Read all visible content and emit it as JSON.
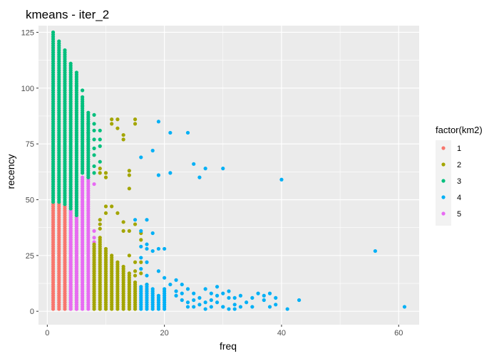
{
  "chart_data": {
    "type": "scatter",
    "title": "kmeans - iter_2",
    "xlabel": "freq",
    "ylabel": "recency",
    "xlim": [
      -1.5,
      63.5
    ],
    "ylim": [
      -6,
      128
    ],
    "x_ticks": [
      0,
      20,
      40,
      60
    ],
    "y_ticks": [
      0,
      25,
      50,
      75,
      100,
      125
    ],
    "grid": true,
    "legend": {
      "title": "factor(km2)",
      "position": "right",
      "entries": [
        "1",
        "2",
        "3",
        "4",
        "5"
      ]
    },
    "colors": {
      "1": "#F8766D",
      "2": "#A3A500",
      "3": "#00BF7D",
      "4": "#00B0F6",
      "5": "#E76BF3"
    },
    "series": [
      {
        "name": "1",
        "columns": [
          {
            "x": 1,
            "ymin": 1,
            "ymax": 48
          },
          {
            "x": 2,
            "ymin": 1,
            "ymax": 48
          },
          {
            "x": 3,
            "ymin": 1,
            "ymax": 47
          },
          {
            "x": 4,
            "ymin": 1,
            "ymax": 45
          },
          {
            "x": 5,
            "ymin": 1,
            "ymax": 42
          }
        ]
      },
      {
        "name": "2",
        "columns": [
          {
            "x": 8,
            "ymin": 1,
            "ymax": 30
          },
          {
            "x": 9,
            "ymin": 1,
            "ymax": 33
          },
          {
            "x": 10,
            "ymin": 1,
            "ymax": 28
          },
          {
            "x": 11,
            "ymin": 1,
            "ymax": 25
          },
          {
            "x": 12,
            "ymin": 1,
            "ymax": 22
          },
          {
            "x": 13,
            "ymin": 1,
            "ymax": 20
          },
          {
            "x": 14,
            "ymin": 1,
            "ymax": 17
          },
          {
            "x": 15,
            "ymin": 1,
            "ymax": 13
          }
        ],
        "points": [
          [
            9,
            41
          ],
          [
            9,
            39
          ],
          [
            9,
            37
          ],
          [
            9,
            62
          ],
          [
            9,
            64
          ],
          [
            10,
            60
          ],
          [
            10,
            62
          ],
          [
            10,
            44
          ],
          [
            10,
            47
          ],
          [
            11,
            84
          ],
          [
            11,
            86
          ],
          [
            12,
            86
          ],
          [
            12,
            82
          ],
          [
            13,
            79
          ],
          [
            13,
            77
          ],
          [
            14,
            63
          ],
          [
            14,
            61
          ],
          [
            14,
            55
          ],
          [
            15,
            84
          ],
          [
            15,
            86
          ],
          [
            11,
            47
          ],
          [
            12,
            44
          ],
          [
            13,
            40
          ],
          [
            13,
            36
          ],
          [
            14,
            36
          ],
          [
            15,
            39
          ],
          [
            16,
            35
          ],
          [
            16,
            32
          ],
          [
            14,
            25
          ],
          [
            15,
            22
          ],
          [
            16,
            22
          ],
          [
            16,
            17
          ],
          [
            17,
            9
          ],
          [
            17,
            12
          ],
          [
            15,
            18
          ],
          [
            15,
            16
          ]
        ]
      },
      {
        "name": "3",
        "columns": [
          {
            "x": 1,
            "ymin": 49,
            "ymax": 125
          },
          {
            "x": 2,
            "ymin": 49,
            "ymax": 121
          },
          {
            "x": 3,
            "ymin": 48,
            "ymax": 117
          },
          {
            "x": 4,
            "ymin": 46,
            "ymax": 111
          },
          {
            "x": 5,
            "ymin": 43,
            "ymax": 107
          },
          {
            "x": 6,
            "ymin": 62,
            "ymax": 96
          },
          {
            "x": 7,
            "ymin": 60,
            "ymax": 89
          }
        ],
        "points": [
          [
            5,
            101
          ],
          [
            6,
            99
          ],
          [
            6,
            92
          ],
          [
            7,
            84
          ],
          [
            7,
            80
          ],
          [
            7,
            77
          ],
          [
            8,
            88
          ],
          [
            8,
            84
          ],
          [
            8,
            81
          ],
          [
            8,
            77
          ],
          [
            8,
            73
          ],
          [
            8,
            70
          ],
          [
            9,
            81
          ],
          [
            9,
            77
          ],
          [
            9,
            74
          ],
          [
            9,
            67
          ],
          [
            8,
            65
          ],
          [
            8,
            62
          ]
        ]
      },
      {
        "name": "4",
        "columns": [
          {
            "x": 16,
            "ymin": 1,
            "ymax": 11
          },
          {
            "x": 17,
            "ymin": 1,
            "ymax": 12
          },
          {
            "x": 18,
            "ymin": 1,
            "ymax": 10
          },
          {
            "x": 19,
            "ymin": 1,
            "ymax": 7
          },
          {
            "x": 20,
            "ymin": 1,
            "ymax": 10
          }
        ],
        "points": [
          [
            19,
            85
          ],
          [
            21,
            80
          ],
          [
            24,
            80
          ],
          [
            18,
            72
          ],
          [
            16,
            69
          ],
          [
            25,
            66
          ],
          [
            27,
            64
          ],
          [
            30,
            64
          ],
          [
            21,
            62
          ],
          [
            19,
            61
          ],
          [
            26,
            60
          ],
          [
            40,
            59
          ],
          [
            17,
            41
          ],
          [
            15,
            41
          ],
          [
            16,
            36
          ],
          [
            18,
            35
          ],
          [
            17,
            30
          ],
          [
            16,
            29
          ],
          [
            17,
            28
          ],
          [
            16,
            24
          ],
          [
            17,
            22
          ],
          [
            18,
            27
          ],
          [
            19,
            28
          ],
          [
            20,
            28
          ],
          [
            16,
            19
          ],
          [
            17,
            16
          ],
          [
            19,
            18
          ],
          [
            20,
            15
          ],
          [
            56,
            27
          ],
          [
            21,
            12
          ],
          [
            22,
            14
          ],
          [
            22,
            9
          ],
          [
            22,
            7
          ],
          [
            23,
            12
          ],
          [
            23,
            8
          ],
          [
            23,
            5
          ],
          [
            24,
            10
          ],
          [
            24,
            4
          ],
          [
            24,
            2
          ],
          [
            25,
            8
          ],
          [
            25,
            5
          ],
          [
            25,
            2
          ],
          [
            26,
            6
          ],
          [
            26,
            3
          ],
          [
            27,
            10
          ],
          [
            27,
            4
          ],
          [
            27,
            1
          ],
          [
            28,
            8
          ],
          [
            28,
            5
          ],
          [
            28,
            2
          ],
          [
            29,
            11
          ],
          [
            29,
            7
          ],
          [
            29,
            4
          ],
          [
            30,
            8
          ],
          [
            30,
            2
          ],
          [
            31,
            9
          ],
          [
            31,
            6
          ],
          [
            31,
            1
          ],
          [
            32,
            6
          ],
          [
            32,
            3
          ],
          [
            33,
            7
          ],
          [
            33,
            2
          ],
          [
            34,
            4
          ],
          [
            35,
            2
          ],
          [
            35,
            6
          ],
          [
            36,
            8
          ],
          [
            37,
            5
          ],
          [
            37,
            7
          ],
          [
            38,
            2
          ],
          [
            39,
            6
          ],
          [
            39,
            3
          ],
          [
            38,
            8
          ],
          [
            41,
            1
          ],
          [
            43,
            5
          ],
          [
            61,
            2
          ],
          [
            30,
            2
          ],
          [
            32,
            1
          ]
        ]
      },
      {
        "name": "5",
        "columns": [
          {
            "x": 4,
            "ymin": 1,
            "ymax": 55
          },
          {
            "x": 5,
            "ymin": 1,
            "ymax": 58
          },
          {
            "x": 6,
            "ymin": 1,
            "ymax": 60
          },
          {
            "x": 7,
            "ymin": 1,
            "ymax": 60
          }
        ],
        "points": [
          [
            7,
            62
          ],
          [
            8,
            57
          ],
          [
            8,
            36
          ],
          [
            8,
            33
          ],
          [
            8,
            31
          ],
          [
            8,
            28
          ],
          [
            8,
            25
          ],
          [
            8,
            21
          ],
          [
            8,
            18
          ],
          [
            8,
            14
          ]
        ]
      }
    ]
  }
}
